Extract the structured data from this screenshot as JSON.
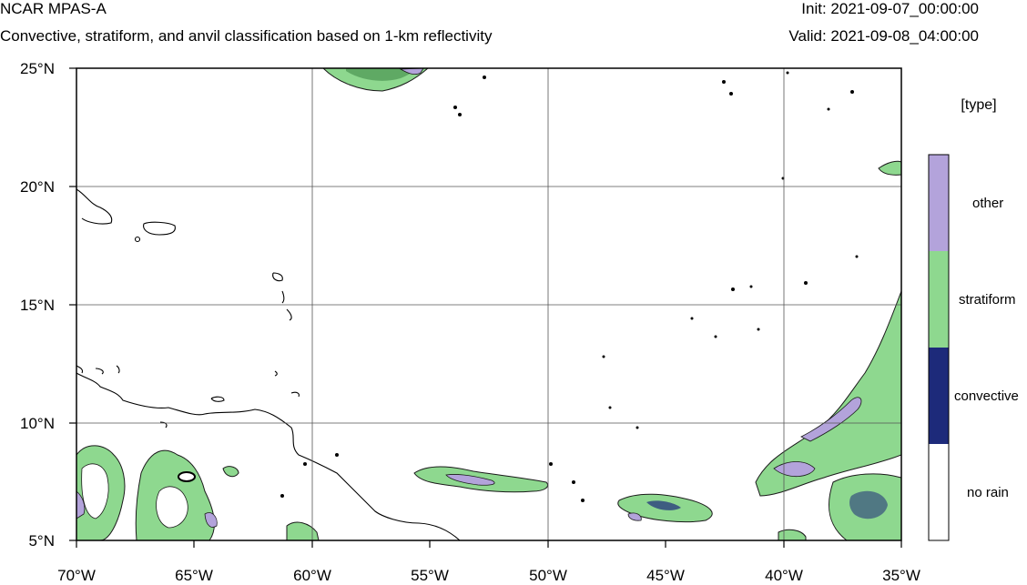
{
  "header": {
    "model": "NCAR MPAS-A",
    "description": "Convective, stratiform, and anvil classification based on 1-km reflectivity",
    "init": "Init: 2021-09-07_00:00:00",
    "valid": "Valid: 2021-09-08_04:00:00"
  },
  "map": {
    "lat_labels": [
      "25°N",
      "20°N",
      "15°N",
      "10°N",
      "5°N"
    ],
    "lon_labels": [
      "70°W",
      "65°W",
      "60°W",
      "55°W",
      "50°W",
      "45°W",
      "40°W",
      "35°W"
    ],
    "lat_range": [
      5,
      25
    ],
    "lon_range": [
      -70,
      -35
    ],
    "gridlines": true
  },
  "legend": {
    "title": "[type]",
    "entries": [
      {
        "label": "other",
        "color": "#b3a3db"
      },
      {
        "label": "stratiform",
        "color": "#8ed88f"
      },
      {
        "label": "convective",
        "color": "#1d2a7a"
      },
      {
        "label": "no rain",
        "color": "#ffffff"
      }
    ]
  }
}
